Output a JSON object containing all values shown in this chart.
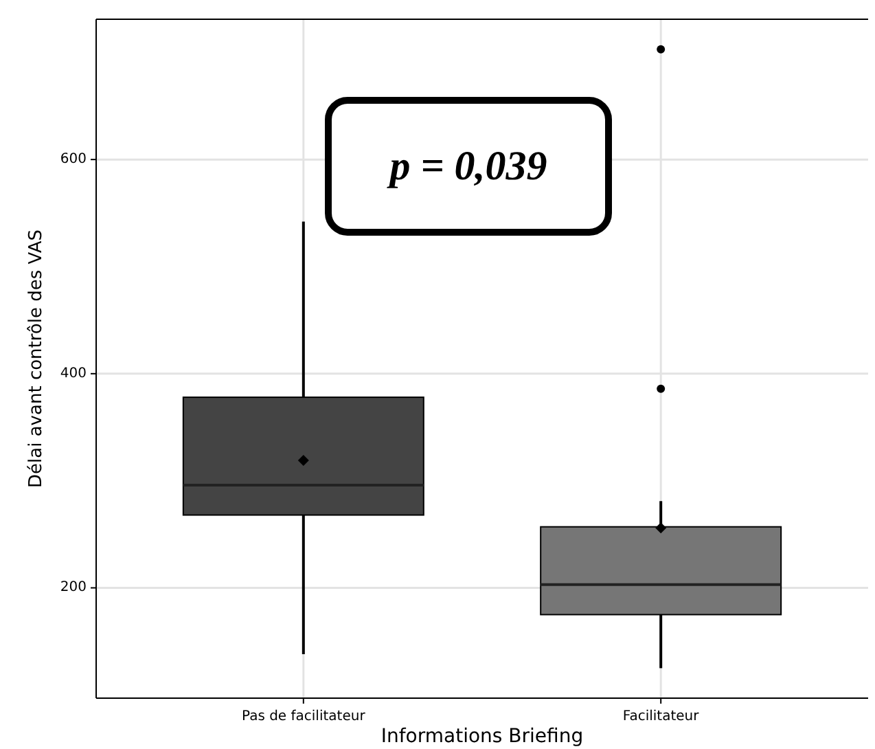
{
  "chart_data": {
    "type": "box",
    "xlabel": "Informations Briefing",
    "ylabel": "Délai avant contrôle des VAS",
    "categories": [
      "Pas de facilitateur",
      "Facilitateur"
    ],
    "colors": [
      "#444444",
      "#767676"
    ],
    "boxes": [
      {
        "low": 138,
        "q1": 268,
        "median": 296,
        "q3": 378,
        "high": 542,
        "mean": 319
      },
      {
        "low": 125,
        "q1": 175,
        "median": 203,
        "q3": 257,
        "high": 281,
        "mean": 256,
        "outliers": [
          386,
          703
        ]
      }
    ],
    "ylim": [
      97,
      731
    ],
    "yticks": [
      200,
      400,
      600
    ],
    "grid": true,
    "annotations": [
      "p = 0,039"
    ]
  }
}
